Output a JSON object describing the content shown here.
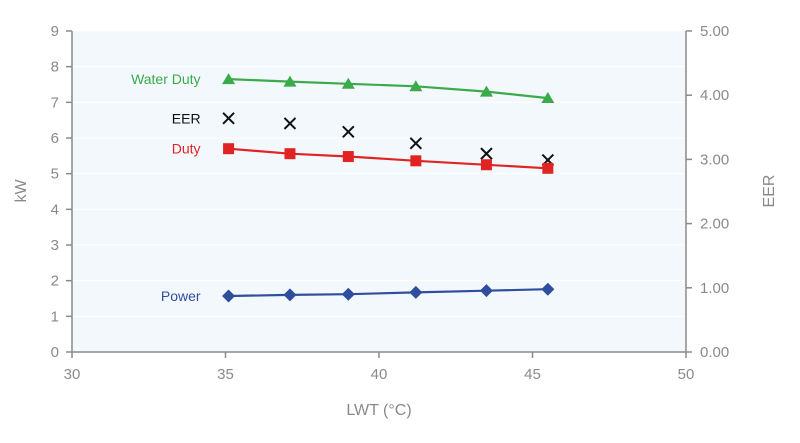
{
  "chart_data": {
    "type": "line",
    "xlabel": "LWT (°C)",
    "ylabel": "kW",
    "y2label": "EER",
    "xlim": [
      30,
      50
    ],
    "ylim": [
      0,
      9
    ],
    "y2lim": [
      0,
      5
    ],
    "xticks": [
      "30",
      "35",
      "40",
      "45",
      "50"
    ],
    "yticks": [
      "0",
      "1",
      "2",
      "3",
      "4",
      "5",
      "6",
      "7",
      "8",
      "9"
    ],
    "y2ticks": [
      "0.00",
      "1.00",
      "2.00",
      "3.00",
      "4.00",
      "5.00"
    ],
    "grid": true,
    "x": [
      35.1,
      37.1,
      39.0,
      41.2,
      43.5,
      45.5
    ],
    "series": [
      {
        "name": "Water Duty",
        "axis": "left",
        "marker": "triangle",
        "line": true,
        "color": "#3aaa4a",
        "values": [
          7.65,
          7.58,
          7.52,
          7.45,
          7.3,
          7.12
        ]
      },
      {
        "name": "EER",
        "axis": "right",
        "marker": "x",
        "line": false,
        "color": "#111111",
        "values": [
          3.64,
          3.56,
          3.43,
          3.25,
          3.09,
          2.99
        ]
      },
      {
        "name": "Duty",
        "axis": "left",
        "marker": "square",
        "line": true,
        "color": "#e02424",
        "values": [
          5.7,
          5.56,
          5.48,
          5.36,
          5.25,
          5.15
        ]
      },
      {
        "name": "Power",
        "axis": "left",
        "marker": "diamond",
        "line": true,
        "color": "#2f4e9e",
        "values": [
          1.57,
          1.6,
          1.62,
          1.67,
          1.72,
          1.76
        ]
      }
    ],
    "colors": {
      "plot_background": "#f3f8fd",
      "axis": "#8a8a8a",
      "grid": "#ffffff"
    }
  }
}
